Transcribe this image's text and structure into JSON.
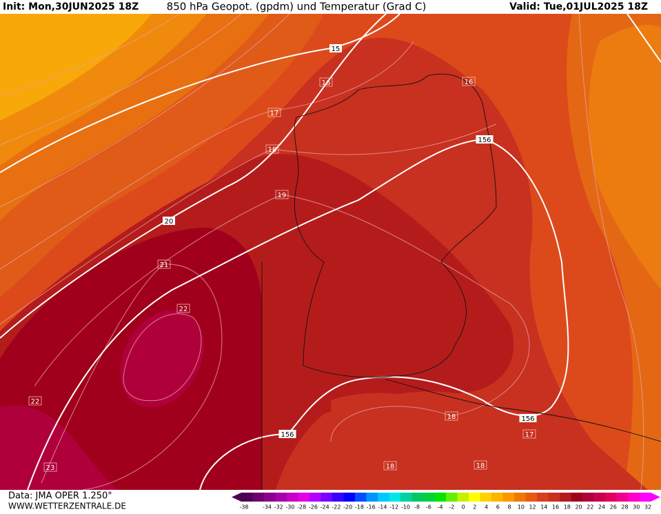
{
  "header": {
    "init": "Init: Mon,30JUN2025 18Z",
    "title": "850 hPa Geopot. (gpdm) und Temperatur (Grad C)",
    "valid": "Valid: Tue,01JUL2025 18Z"
  },
  "map": {
    "contour_labels": [
      "15",
      "16",
      "16",
      "17",
      "18",
      "19",
      "20",
      "21",
      "22",
      "22",
      "23",
      "18",
      "17",
      "18",
      "18"
    ],
    "geopotential_labels": [
      "156",
      "156",
      "156"
    ]
  },
  "footer": {
    "data_source": "Data: JMA OPER 1.250°",
    "website": "WWW.WETTERZENTRALE.DE"
  },
  "colorbar": {
    "labels": [
      -38,
      -34,
      -32,
      -30,
      -28,
      -26,
      -24,
      -22,
      -20,
      -18,
      -16,
      -14,
      -12,
      -10,
      -8,
      -6,
      -4,
      -2,
      0,
      2,
      4,
      6,
      8,
      10,
      12,
      14,
      16,
      18,
      20,
      22,
      24,
      26,
      28,
      30,
      32
    ],
    "colors": [
      "#500050",
      "#6e006e",
      "#8c008c",
      "#aa00aa",
      "#c800c8",
      "#e600e6",
      "#b400ff",
      "#7800ff",
      "#3c00ff",
      "#0000ff",
      "#0050ff",
      "#0096ff",
      "#00c8ff",
      "#00e6e6",
      "#00d2a0",
      "#00c864",
      "#00d23c",
      "#00e600",
      "#64f000",
      "#c8f000",
      "#ffff00",
      "#ffd200",
      "#ffb400",
      "#ff9600",
      "#f07800",
      "#e85a14",
      "#d8401c",
      "#c83020",
      "#b41c1c",
      "#a0001c",
      "#b0003c",
      "#c8004c",
      "#e0005c",
      "#f0008c",
      "#ff00c8",
      "#ff00ff"
    ]
  }
}
